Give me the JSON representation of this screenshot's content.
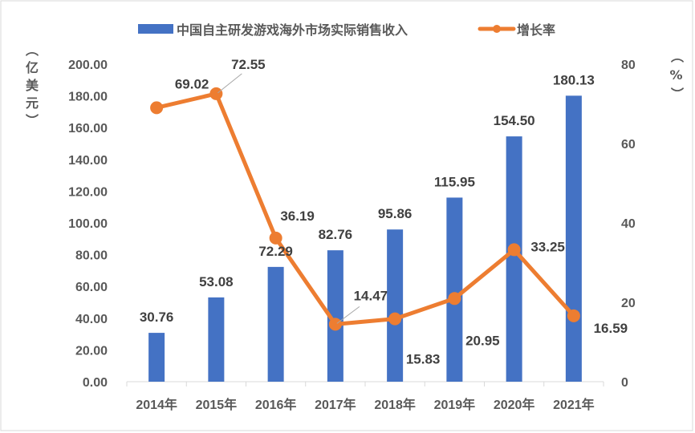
{
  "chart_data": {
    "type": "bar+line",
    "categories": [
      "2014年",
      "2015年",
      "2016年",
      "2017年",
      "2018年",
      "2019年",
      "2020年",
      "2021年"
    ],
    "series": [
      {
        "name": "中国自主研发游戏海外市场实际销售收入",
        "type": "bar",
        "axis": "left",
        "color": "#4472C4",
        "values": [
          30.76,
          53.08,
          72.29,
          82.76,
          95.86,
          115.95,
          154.5,
          180.13
        ],
        "labels": [
          "30.76",
          "53.08",
          "72.29",
          "82.76",
          "95.86",
          "115.95",
          "154.50",
          "180.13"
        ]
      },
      {
        "name": "增长率",
        "type": "line",
        "axis": "right",
        "color": "#ED7D31",
        "values": [
          69.02,
          72.55,
          36.19,
          14.47,
          15.83,
          20.95,
          33.25,
          16.59
        ],
        "labels": [
          "69.02",
          "72.55",
          "36.19",
          "14.47",
          "15.83",
          "20.95",
          "33.25",
          "16.59"
        ]
      }
    ],
    "y_left": {
      "label": "（亿美元）",
      "range": [
        0,
        200
      ],
      "ticks": [
        "0.00",
        "20.00",
        "40.00",
        "60.00",
        "80.00",
        "100.00",
        "120.00",
        "140.00",
        "160.00",
        "180.00",
        "200.00"
      ]
    },
    "y_right": {
      "label": "（%）",
      "range": [
        0,
        80
      ],
      "ticks": [
        "0",
        "20",
        "40",
        "60",
        "80"
      ]
    },
    "grid": false,
    "legend": "top"
  }
}
